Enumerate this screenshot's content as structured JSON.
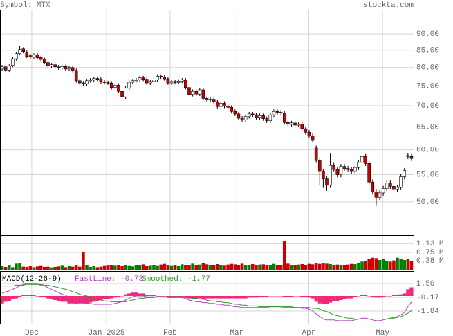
{
  "chart_data": [
    {
      "type": "candlestick",
      "title": "Symbol: MTX",
      "source": "stockta.com",
      "log_scale": true,
      "grid": true,
      "up_color": "#ffffff",
      "down_color": "#cc0000",
      "edge_color": "#000000",
      "ylim": [
        44.5,
        98
      ],
      "yticks": [
        {
          "value": 50,
          "label": "50.00"
        },
        {
          "value": 55,
          "label": "55.00"
        },
        {
          "value": 60,
          "label": "60.00"
        },
        {
          "value": 65,
          "label": "65.00"
        },
        {
          "value": 70,
          "label": "70.00"
        },
        {
          "value": 75,
          "label": "75.00"
        },
        {
          "value": 80,
          "label": "80.00"
        },
        {
          "value": 85,
          "label": "85.00"
        },
        {
          "value": 90,
          "label": "90.00"
        }
      ],
      "open": [
        79.6,
        80.2,
        79.3,
        80.6,
        82.5,
        84.0,
        85.4,
        84.4,
        83.4,
        83.0,
        83.6,
        82.9,
        82.3,
        81.4,
        80.4,
        80.8,
        80.2,
        79.9,
        80.3,
        79.6,
        80.0,
        79.2,
        76.4,
        75.8,
        75.6,
        76.4,
        76.6,
        77.0,
        76.8,
        76.1,
        75.9,
        75.8,
        74.6,
        75.2,
        73.6,
        72.2,
        74.4,
        76.0,
        76.4,
        76.6,
        77.2,
        76.8,
        75.8,
        76.2,
        76.6,
        77.6,
        77.4,
        76.9,
        75.8,
        76.2,
        75.9,
        76.3,
        76.6,
        74.6,
        72.8,
        73.6,
        72.9,
        74.0,
        71.8,
        71.4,
        71.6,
        71.0,
        69.8,
        70.6,
        69.9,
        69.6,
        68.6,
        68.0,
        67.0,
        66.6,
        67.4,
        68.0,
        67.8,
        67.2,
        67.6,
        66.9,
        66.4,
        67.8,
        68.6,
        68.4,
        68.2,
        66.0,
        65.6,
        65.9,
        65.4,
        65.6,
        64.6,
        63.8,
        63.0,
        60.4,
        57.8,
        55.6,
        54.2,
        53.0,
        56.8,
        56.0,
        55.0,
        56.6,
        56.2,
        56.0,
        55.6,
        56.4,
        57.4,
        58.6,
        57.2,
        53.6,
        51.8,
        50.8,
        51.6,
        52.4,
        53.4,
        52.8,
        52.2,
        52.6,
        54.6,
        58.8,
        58.6
      ],
      "high": [
        80.7,
        80.7,
        80.9,
        83.0,
        84.5,
        86.2,
        85.9,
        84.9,
        83.9,
        84.1,
        84.1,
        83.4,
        82.8,
        81.9,
        81.3,
        81.3,
        80.7,
        80.8,
        80.8,
        80.5,
        80.5,
        79.7,
        76.9,
        76.3,
        76.9,
        77.1,
        77.5,
        77.5,
        77.3,
        76.6,
        76.4,
        76.3,
        75.7,
        75.7,
        74.1,
        74.9,
        76.5,
        76.9,
        77.1,
        77.7,
        77.7,
        77.3,
        76.7,
        77.1,
        78.1,
        78.1,
        77.9,
        77.4,
        76.7,
        76.7,
        76.8,
        77.1,
        77.1,
        75.1,
        74.1,
        74.1,
        74.5,
        74.5,
        72.3,
        72.1,
        72.1,
        71.5,
        71.1,
        71.1,
        70.4,
        70.1,
        69.1,
        68.5,
        67.5,
        67.9,
        68.5,
        68.5,
        68.3,
        68.1,
        68.1,
        67.4,
        68.3,
        69.1,
        69.1,
        68.9,
        68.7,
        66.5,
        66.4,
        66.4,
        66.1,
        66.1,
        65.1,
        64.3,
        63.5,
        60.9,
        58.3,
        56.1,
        54.7,
        59.2,
        57.3,
        56.5,
        57.1,
        57.1,
        56.7,
        56.5,
        56.9,
        57.9,
        59.3,
        59.1,
        57.7,
        54.1,
        52.3,
        52.1,
        52.9,
        53.9,
        53.9,
        53.3,
        53.1,
        55.1,
        56.3,
        59.3,
        59.1
      ],
      "low": [
        79.1,
        78.8,
        78.8,
        80.1,
        82.0,
        83.5,
        84.1,
        82.7,
        82.5,
        82.5,
        82.3,
        81.8,
        80.9,
        79.9,
        79.9,
        79.7,
        79.4,
        79.4,
        79.1,
        79.1,
        78.7,
        75.9,
        75.3,
        75.1,
        75.1,
        75.9,
        76.1,
        76.3,
        75.6,
        75.4,
        75.3,
        74.1,
        74.1,
        73.1,
        71.0,
        71.7,
        73.9,
        75.5,
        75.9,
        76.1,
        76.3,
        75.3,
        75.3,
        75.7,
        76.1,
        76.9,
        76.4,
        75.3,
        75.3,
        75.4,
        75.4,
        75.8,
        74.1,
        72.3,
        72.3,
        72.4,
        72.4,
        71.3,
        70.9,
        70.9,
        70.5,
        69.3,
        69.3,
        69.4,
        69.1,
        68.1,
        67.5,
        66.5,
        66.1,
        66.1,
        66.9,
        67.3,
        66.7,
        66.7,
        66.4,
        65.9,
        65.9,
        67.3,
        67.9,
        67.7,
        65.5,
        65.1,
        65.1,
        64.9,
        64.9,
        64.1,
        63.3,
        62.5,
        61.5,
        57.3,
        53.0,
        52.5,
        52.0,
        52.5,
        55.5,
        54.5,
        54.5,
        55.7,
        55.5,
        55.1,
        55.1,
        55.9,
        56.9,
        56.7,
        53.1,
        51.3,
        49.3,
        50.3,
        51.1,
        51.9,
        52.3,
        51.7,
        51.7,
        52.1,
        54.1,
        58.1,
        57.7
      ],
      "close": [
        80.2,
        79.3,
        80.4,
        82.5,
        84.0,
        85.2,
        84.6,
        83.2,
        83.0,
        83.6,
        82.8,
        82.3,
        81.4,
        80.4,
        80.8,
        80.2,
        79.9,
        80.3,
        79.6,
        80.0,
        79.2,
        76.4,
        75.8,
        75.6,
        76.4,
        76.6,
        77.0,
        76.8,
        76.1,
        75.9,
        75.8,
        74.6,
        75.2,
        73.6,
        72.2,
        74.4,
        76.0,
        76.4,
        76.6,
        77.2,
        76.8,
        75.8,
        76.2,
        76.6,
        77.6,
        77.4,
        76.9,
        75.8,
        76.2,
        75.9,
        76.3,
        76.6,
        74.6,
        72.8,
        73.6,
        72.9,
        74.0,
        71.8,
        71.4,
        71.6,
        71.0,
        69.8,
        70.6,
        69.9,
        69.6,
        68.6,
        68.0,
        67.0,
        66.6,
        67.4,
        68.0,
        67.8,
        67.2,
        67.6,
        66.9,
        66.4,
        67.8,
        68.6,
        68.4,
        68.2,
        66.0,
        65.6,
        65.9,
        65.4,
        65.6,
        64.6,
        63.8,
        63.0,
        62.0,
        57.8,
        55.6,
        54.2,
        53.0,
        56.8,
        56.0,
        55.0,
        56.6,
        56.2,
        56.0,
        55.6,
        56.4,
        57.4,
        58.6,
        57.2,
        53.6,
        51.8,
        50.8,
        51.6,
        52.4,
        53.4,
        52.8,
        52.2,
        52.6,
        54.6,
        55.8,
        58.6,
        58.2
      ]
    },
    {
      "type": "bar",
      "grid": true,
      "up_color": "#008000",
      "down_color": "#cc0000",
      "ylim": [
        0,
        1440000
      ],
      "yticks": [
        {
          "value": 380000,
          "label": "0.38 M"
        },
        {
          "value": 750000,
          "label": "0.75 M"
        },
        {
          "value": 1130000,
          "label": "1.13 M"
        }
      ],
      "values": [
        150000,
        120000,
        180000,
        110000,
        260000,
        300000,
        130000,
        120000,
        150000,
        110000,
        140000,
        160000,
        120000,
        130000,
        100000,
        120000,
        140000,
        170000,
        110000,
        150000,
        130000,
        180000,
        130000,
        780000,
        200000,
        120000,
        150000,
        110000,
        130000,
        160000,
        180000,
        200000,
        170000,
        190000,
        150000,
        210000,
        160000,
        140000,
        180000,
        200000,
        230000,
        150000,
        170000,
        190000,
        160000,
        220000,
        250000,
        180000,
        160000,
        200000,
        150000,
        230000,
        210000,
        190000,
        260000,
        200000,
        220000,
        280000,
        230000,
        180000,
        210000,
        240000,
        200000,
        170000,
        220000,
        250000,
        230000,
        190000,
        260000,
        210000,
        200000,
        240000,
        180000,
        220000,
        230000,
        190000,
        210000,
        250000,
        200000,
        180000,
        1230000,
        260000,
        200000,
        180000,
        220000,
        240000,
        210000,
        250000,
        230000,
        300000,
        250000,
        280000,
        260000,
        240000,
        200000,
        220000,
        210000,
        180000,
        220000,
        250000,
        240000,
        300000,
        350000,
        380000,
        480000,
        520000,
        500000,
        420000,
        460000,
        380000,
        350000,
        400000,
        520000,
        460000,
        420000,
        450000,
        380000
      ]
    },
    {
      "type": "line",
      "title": "MACD(12-26-9)",
      "grid": true,
      "xlim": [
        -0.6,
        116.6
      ],
      "xticks": [
        {
          "value": 8.4,
          "label": "Dec"
        },
        {
          "value": 29.6,
          "label": "Jan 2025"
        },
        {
          "value": 47.6,
          "label": "Feb"
        },
        {
          "value": 66.5,
          "label": "Mar"
        },
        {
          "value": 86.9,
          "label": "Apr"
        },
        {
          "value": 107.8,
          "label": "May"
        }
      ],
      "ylim": [
        -3.34,
        2.92
      ],
      "yticks": [
        -1.84,
        -0.17,
        {
          "value": 1.5,
          "label": "1.50"
        }
      ],
      "series": [
        {
          "name": "FastLine: -0.73",
          "color": "#b040c0",
          "values": [
            0.3,
            0.5,
            0.6,
            0.8,
            1.0,
            1.2,
            1.4,
            1.5,
            1.5,
            1.5,
            1.4,
            1.3,
            1.2,
            1.0,
            0.8,
            0.6,
            0.4,
            0.2,
            0.1,
            -0.2,
            -0.4,
            -0.6,
            -0.7,
            -0.8,
            -0.9,
            -0.9,
            -1.0,
            -1.0,
            -1.0,
            -1.0,
            -1.0,
            -1.0,
            -0.9,
            -0.8,
            -0.7,
            -0.5,
            -0.3,
            -0.1,
            0.0,
            0.0,
            0.0,
            -0.1,
            -0.1,
            -0.1,
            -0.1,
            -0.1,
            -0.1,
            -0.2,
            -0.2,
            -0.2,
            -0.2,
            -0.2,
            -0.3,
            -0.5,
            -0.6,
            -0.7,
            -0.7,
            -0.8,
            -0.8,
            -0.9,
            -0.9,
            -1.0,
            -1.0,
            -1.1,
            -1.1,
            -1.2,
            -1.3,
            -1.3,
            -1.4,
            -1.4,
            -1.4,
            -1.4,
            -1.4,
            -1.4,
            -1.4,
            -1.4,
            -1.3,
            -1.3,
            -1.3,
            -1.3,
            -1.4,
            -1.4,
            -1.4,
            -1.4,
            -1.4,
            -1.5,
            -1.5,
            -1.6,
            -1.8,
            -2.2,
            -2.5,
            -2.8,
            -2.9,
            -2.9,
            -2.9,
            -3.0,
            -3.0,
            -3.0,
            -3.0,
            -3.0,
            -2.9,
            -2.8,
            -2.7,
            -2.7,
            -2.8,
            -2.9,
            -3.0,
            -3.0,
            -2.9,
            -2.8,
            -2.7,
            -2.6,
            -2.5,
            -2.3,
            -2.0,
            -1.3,
            -0.73
          ]
        },
        {
          "name": "Smoothed: -1.77",
          "color": "#2a9a2a",
          "values": [
            1.2,
            1.2,
            1.2,
            1.2,
            1.3,
            1.3,
            1.3,
            1.4,
            1.4,
            1.4,
            1.4,
            1.4,
            1.3,
            1.3,
            1.2,
            1.1,
            1.0,
            0.9,
            0.8,
            0.7,
            0.5,
            0.4,
            0.2,
            0.1,
            0.0,
            -0.1,
            -0.3,
            -0.4,
            -0.5,
            -0.6,
            -0.6,
            -0.7,
            -0.7,
            -0.7,
            -0.7,
            -0.7,
            -0.6,
            -0.5,
            -0.4,
            -0.3,
            -0.3,
            -0.2,
            -0.2,
            -0.2,
            -0.1,
            -0.1,
            -0.1,
            -0.1,
            -0.1,
            -0.1,
            -0.1,
            -0.1,
            -0.2,
            -0.2,
            -0.3,
            -0.3,
            -0.4,
            -0.4,
            -0.5,
            -0.6,
            -0.6,
            -0.7,
            -0.7,
            -0.8,
            -0.8,
            -0.9,
            -1.0,
            -1.0,
            -1.1,
            -1.1,
            -1.2,
            -1.2,
            -1.2,
            -1.3,
            -1.3,
            -1.3,
            -1.3,
            -1.3,
            -1.3,
            -1.3,
            -1.3,
            -1.3,
            -1.3,
            -1.4,
            -1.4,
            -1.4,
            -1.4,
            -1.4,
            -1.5,
            -1.5,
            -1.6,
            -1.8,
            -1.9,
            -2.1,
            -2.3,
            -2.4,
            -2.5,
            -2.6,
            -2.7,
            -2.7,
            -2.8,
            -2.8,
            -2.8,
            -2.8,
            -2.8,
            -2.8,
            -2.8,
            -2.8,
            -2.8,
            -2.8,
            -2.7,
            -2.7,
            -2.6,
            -2.5,
            -2.3,
            -2.1,
            -1.77
          ]
        }
      ],
      "histogram": {
        "color": "#f0287a",
        "values": [
          -0.9,
          -0.7,
          -0.6,
          -0.4,
          -0.3,
          -0.1,
          0.1,
          0.1,
          0.1,
          0.1,
          0.0,
          -0.1,
          -0.1,
          -0.3,
          -0.4,
          -0.5,
          -0.6,
          -0.7,
          -0.7,
          -0.9,
          -0.9,
          -1.0,
          -0.9,
          -0.9,
          -0.9,
          -0.8,
          -0.7,
          -0.6,
          -0.5,
          -0.4,
          -0.4,
          -0.3,
          -0.2,
          -0.1,
          0.0,
          0.2,
          0.3,
          0.4,
          0.4,
          0.3,
          0.3,
          0.1,
          0.1,
          0.1,
          0.0,
          0.0,
          0.0,
          -0.1,
          -0.1,
          -0.1,
          -0.1,
          -0.1,
          -0.1,
          -0.3,
          -0.3,
          -0.4,
          -0.3,
          -0.4,
          -0.3,
          -0.3,
          -0.3,
          -0.3,
          -0.3,
          -0.3,
          -0.3,
          -0.3,
          -0.3,
          -0.3,
          -0.3,
          -0.3,
          -0.2,
          -0.2,
          -0.2,
          -0.1,
          -0.1,
          -0.1,
          0.0,
          0.0,
          0.0,
          0.0,
          -0.1,
          -0.1,
          -0.1,
          0.0,
          0.0,
          -0.1,
          -0.1,
          -0.2,
          -0.3,
          -0.7,
          -0.9,
          -1.0,
          -1.0,
          -0.8,
          -0.6,
          -0.6,
          -0.5,
          -0.4,
          -0.3,
          -0.3,
          -0.1,
          0.0,
          0.1,
          0.1,
          0.0,
          -0.1,
          -0.2,
          -0.2,
          -0.1,
          0.0,
          0.0,
          0.1,
          0.1,
          0.2,
          0.3,
          0.8,
          1.04
        ]
      }
    }
  ]
}
